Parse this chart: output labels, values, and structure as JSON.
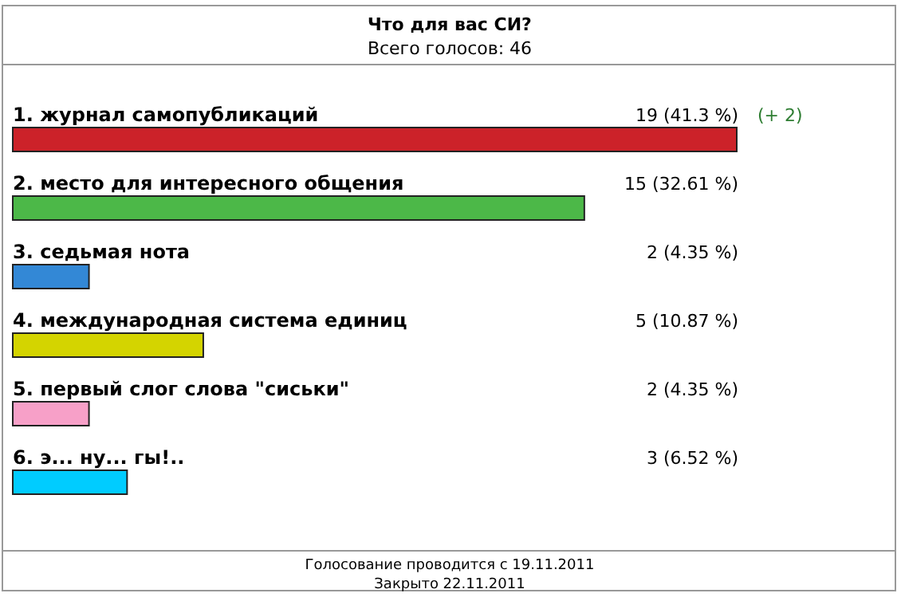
{
  "chart_data": {
    "type": "bar",
    "orientation": "horizontal",
    "title": "Что для вас СИ?",
    "subtitle": "Всего голосов: 46",
    "categories": [
      "1. журнал самопубликаций",
      "2. место для интересного общения",
      "3. седьмая нота",
      "4. международная система единиц",
      "5. первый слог слова \"сиськи\"",
      "6. э... ну... гы!.."
    ],
    "values": [
      19,
      15,
      2,
      5,
      2,
      3
    ],
    "value_labels": [
      "19 (41.3 %)",
      "15 (32.61 %)",
      "2 (4.35 %)",
      "5 (10.87 %)",
      "2 (4.35 %)",
      "3 (6.52 %)"
    ],
    "colors": [
      "#cc2229",
      "#4cb848",
      "#3388d6",
      "#d4d400",
      "#f7a0c8",
      "#00ccff"
    ],
    "annotations": [
      {
        "text": "(+ 2)",
        "x": 19,
        "y": "1. журнал самопубликаций"
      },
      "Голосование проводится с 19.11.2011",
      "Закрыто 22.11.2011"
    ]
  }
}
